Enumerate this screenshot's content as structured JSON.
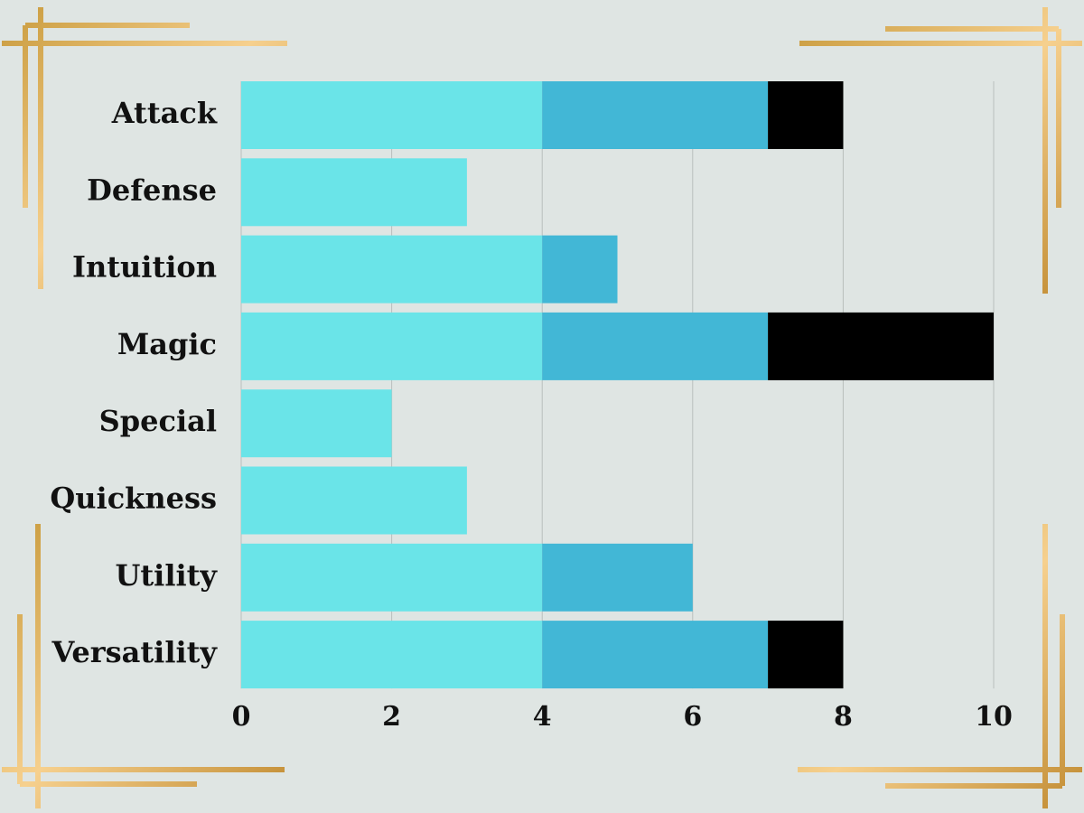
{
  "chart_data": {
    "type": "stacked-bar",
    "orientation": "horizontal",
    "categories": [
      "Attack",
      "Defense",
      "Intuition",
      "Magic",
      "Special",
      "Quickness",
      "Utility",
      "Versatility"
    ],
    "series": [
      {
        "color": "#6ae4e8",
        "values": [
          4,
          3,
          4,
          4,
          2,
          3,
          4,
          4
        ]
      },
      {
        "color": "#42b7d6",
        "values": [
          3,
          0,
          1,
          3,
          0,
          0,
          2,
          3
        ]
      },
      {
        "color": "#000000",
        "values": [
          1,
          0,
          0,
          3,
          0,
          0,
          0,
          1
        ]
      }
    ],
    "xlim": [
      0,
      10
    ],
    "xticks": [
      0,
      2,
      4,
      6,
      8,
      10
    ],
    "grid": true
  }
}
